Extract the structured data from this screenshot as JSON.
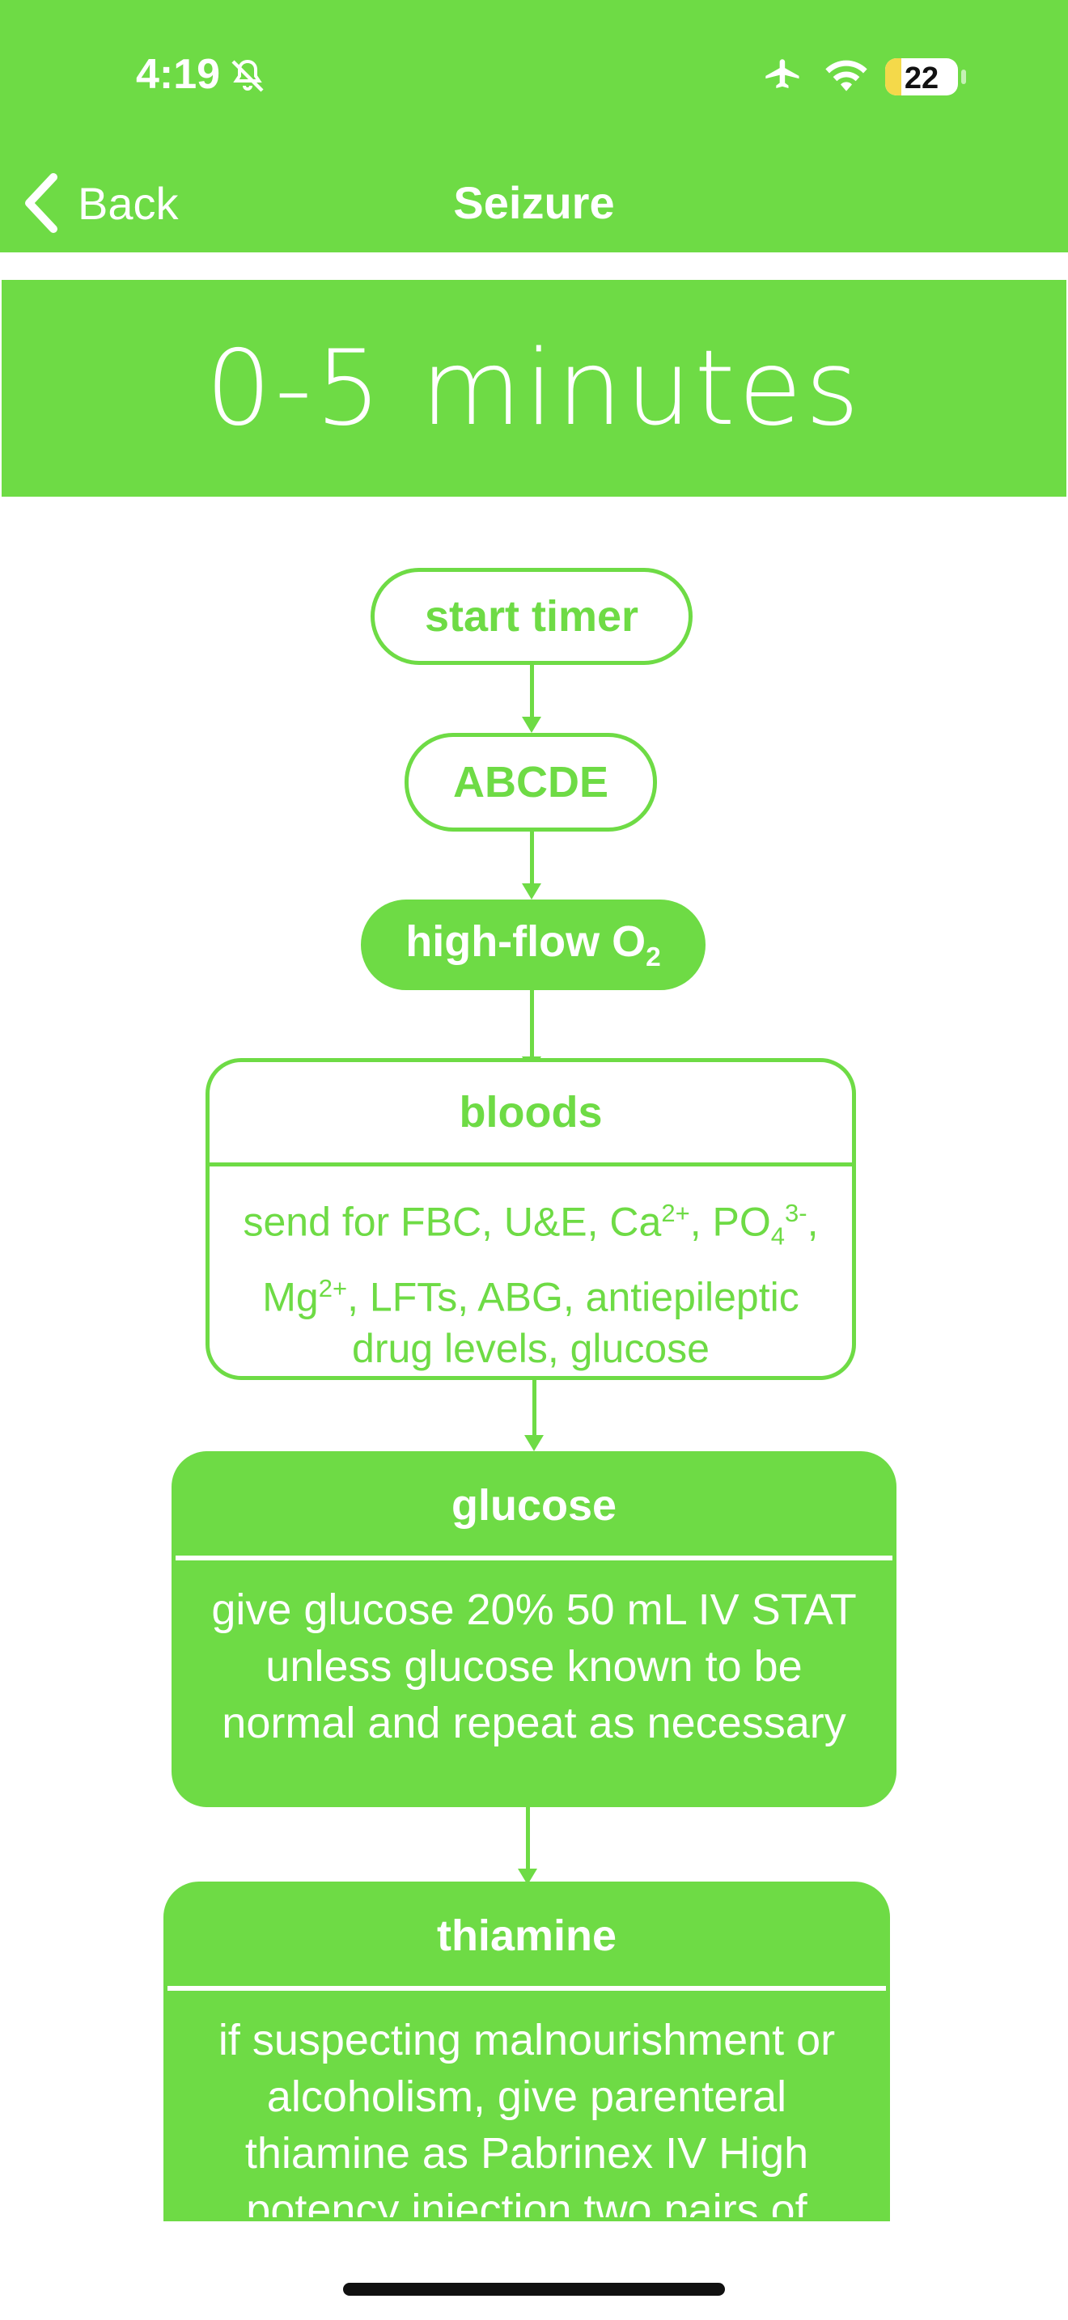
{
  "status_bar": {
    "time": "4:19",
    "battery": "22",
    "battery_level": 0.22
  },
  "nav": {
    "back_label": "Back",
    "title": "Seizure"
  },
  "banner": {
    "title": "0-5 minutes"
  },
  "flow": {
    "start_timer": "start timer",
    "abcde": "ABCDE",
    "highflow": {
      "text": "high-flow O",
      "sub": "2"
    },
    "bloods": {
      "title": "bloods",
      "body": {
        "a": "send for FBC, U&E, Ca",
        "ca_sup": "2+",
        "b": ", PO",
        "po_sub": "4",
        "po_sup": "3-",
        "c": ", Mg",
        "mg_sup": "2+",
        "d": ", LFTs, ABG, antiepileptic drug levels, glucose"
      }
    },
    "glucose": {
      "title": "glucose",
      "body": "give glucose 20% 50 mL IV STAT unless glucose known to be normal and repeat as necessary"
    },
    "thiamine": {
      "title": "thiamine",
      "body": "if suspecting malnourishment or alcoholism, give parenteral thiamine as Pabrinex IV High potency injection two pairs of"
    }
  },
  "colors": {
    "accent": "#6EDB45",
    "background": "#ffffff"
  }
}
